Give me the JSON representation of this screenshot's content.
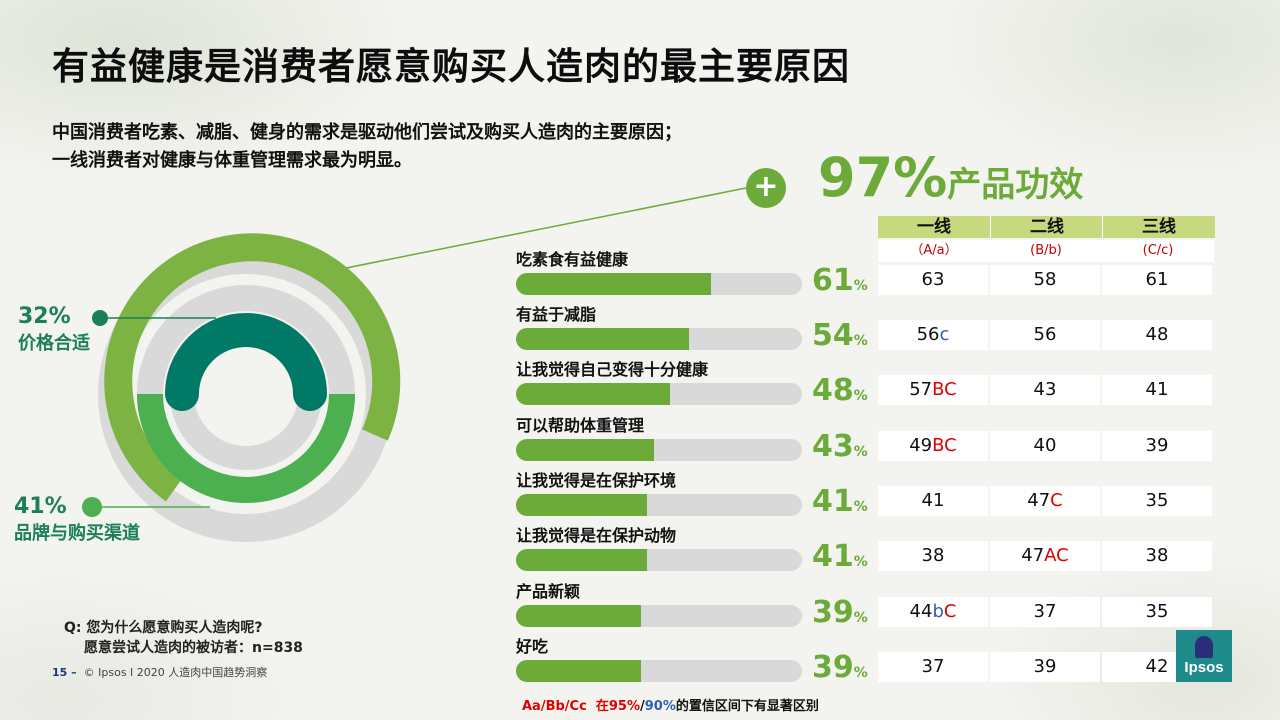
{
  "title": "有益健康是消费者愿意购买人造肉的最主要原因",
  "subtitle_1": "中国消费者吃素、减脂、健身的需求是驱动他们尝试及购买人造肉的主要原因；",
  "subtitle_2": "一线消费者对健康与体重管理需求最为明显。",
  "headline": {
    "value": "97%",
    "label": "产品功效",
    "icon": "plus-icon"
  },
  "donut": {
    "segments": [
      {
        "pct": "97%",
        "label": "产品功效",
        "value": 97
      },
      {
        "pct": "32%",
        "label": "价格合适",
        "value": 32
      },
      {
        "pct": "41%",
        "label": "品牌与购买渠道",
        "value": 41
      }
    ],
    "colors": {
      "efficacy": "#7cb342",
      "price": "#007a66",
      "brand": "#4caf50",
      "track": "#d9d9d9"
    }
  },
  "table": {
    "columns": [
      {
        "name": "一线",
        "code": "（A/a）"
      },
      {
        "name": "二线",
        "code": "(B/b)"
      },
      {
        "name": "三线",
        "code": "(C/c)"
      }
    ]
  },
  "chart_data": {
    "type": "bar",
    "xlim": [
      0,
      100
    ],
    "bar_color": "#6cab3a",
    "pct_suffix": "%",
    "categories": [
      "吃素食有益健康",
      "有益于减脂",
      "让我觉得自己变得十分健康",
      "可以帮助体重管理",
      "让我觉得是在保护环境",
      "让我觉得是在保护动物",
      "产品新颖",
      "好吃"
    ],
    "values": [
      61,
      54,
      48,
      43,
      41,
      41,
      39,
      39
    ],
    "tiers": [
      [
        {
          "v": "63",
          "sig": ""
        },
        {
          "v": "58",
          "sig": ""
        },
        {
          "v": "61",
          "sig": ""
        }
      ],
      [
        {
          "v": "56",
          "sig": "c"
        },
        {
          "v": "56",
          "sig": ""
        },
        {
          "v": "48",
          "sig": ""
        }
      ],
      [
        {
          "v": "57",
          "sig": "BC"
        },
        {
          "v": "43",
          "sig": ""
        },
        {
          "v": "41",
          "sig": ""
        }
      ],
      [
        {
          "v": "49",
          "sig": "BC"
        },
        {
          "v": "40",
          "sig": ""
        },
        {
          "v": "39",
          "sig": ""
        }
      ],
      [
        {
          "v": "41",
          "sig": ""
        },
        {
          "v": "47",
          "sig": "C"
        },
        {
          "v": "35",
          "sig": ""
        }
      ],
      [
        {
          "v": "38",
          "sig": ""
        },
        {
          "v": "47",
          "sig": "AC"
        },
        {
          "v": "38",
          "sig": ""
        }
      ],
      [
        {
          "v": "44",
          "sig": "bC"
        },
        {
          "v": "37",
          "sig": ""
        },
        {
          "v": "35",
          "sig": ""
        }
      ],
      [
        {
          "v": "37",
          "sig": ""
        },
        {
          "v": "39",
          "sig": ""
        },
        {
          "v": "42",
          "sig": ""
        }
      ]
    ]
  },
  "question": {
    "line1": "Q:  您为什么愿意购买人造肉呢?",
    "line2": "愿意尝试人造肉的被访者：n=838"
  },
  "footer": {
    "page": "15 –",
    "text": "© Ipsos I 2020 人造肉中国趋势洞察"
  },
  "legend": {
    "codes": "Aa/Bb/Cc",
    "text_pre": "在",
    "p95": "95%",
    "slash": "/",
    "p90": "90%",
    "text_post": "的置信区间下有显著区别"
  },
  "logo": {
    "text": "Ipsos"
  }
}
